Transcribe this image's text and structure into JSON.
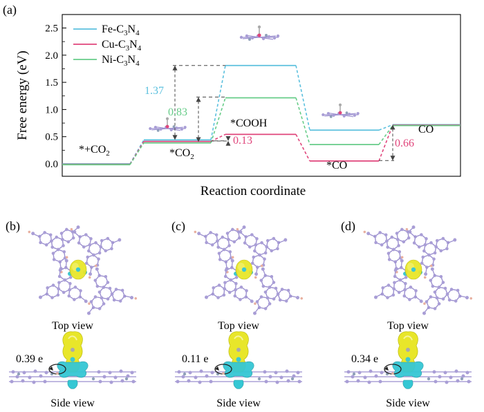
{
  "panel_a_label": "(a)",
  "chart_data": {
    "type": "line",
    "title": "",
    "xlabel": "Reaction coordinate",
    "ylabel": "Free energy (eV)",
    "ylim": [
      -0.2,
      2.5
    ],
    "yticks": [
      "0.0",
      "0.5",
      "1.0",
      "1.5",
      "2.0",
      "2.5"
    ],
    "grid": false,
    "legend_position": "top-left",
    "steps": [
      "*+CO2",
      "*CO2",
      "*COOH",
      "*CO",
      "CO"
    ],
    "step_labels": {
      "s0": "*+CO",
      "s0_sub": "2",
      "s1": "*CO",
      "s1_sub": "2",
      "s2": "*COOH",
      "s3": "*CO",
      "s4": "CO"
    },
    "series": [
      {
        "name": "Fe-C3N4",
        "legend_main": "Fe-C",
        "legend_sub1": "3",
        "legend_mid": "N",
        "legend_sub2": "4",
        "color": "#5bc0de",
        "values": [
          0.0,
          0.44,
          1.81,
          0.62,
          0.72
        ]
      },
      {
        "name": "Cu-C3N4",
        "legend_main": "Cu-C",
        "legend_sub1": "3",
        "legend_mid": "N",
        "legend_sub2": "4",
        "color": "#e0457b",
        "values": [
          0.0,
          0.42,
          0.55,
          0.06,
          0.72
        ]
      },
      {
        "name": "Ni-C3N4",
        "legend_main": "Ni-C",
        "legend_sub1": "3",
        "legend_mid": "N",
        "legend_sub2": "4",
        "color": "#66cc88",
        "values": [
          0.0,
          0.4,
          1.23,
          0.37,
          0.72
        ]
      }
    ],
    "annotations": [
      {
        "text": "1.37",
        "color": "#5bc0de"
      },
      {
        "text": "0.83",
        "color": "#66cc88"
      },
      {
        "text": "0.13",
        "color": "#e0457b"
      },
      {
        "text": "0.66",
        "color": "#e0457b"
      }
    ]
  },
  "panels": [
    {
      "label": "(b)",
      "top_caption": "Top view",
      "side_caption": "Side view",
      "charge": "0.39 e"
    },
    {
      "label": "(c)",
      "top_caption": "Top view",
      "side_caption": "Side view",
      "charge": "0.11 e"
    },
    {
      "label": "(d)",
      "top_caption": "Top view",
      "side_caption": "Side view",
      "charge": "0.34 e"
    }
  ],
  "colors": {
    "carbon_atom": "#a99ed6",
    "nitrogen_atom": "#8fa0b8",
    "metal_atom": "#3ec7cf",
    "hydrogen_atom": "#e8b0a0",
    "charge_accumulation": "#e8e62a",
    "charge_depletion": "#35c7d4",
    "bond": "#9b8fcf"
  }
}
